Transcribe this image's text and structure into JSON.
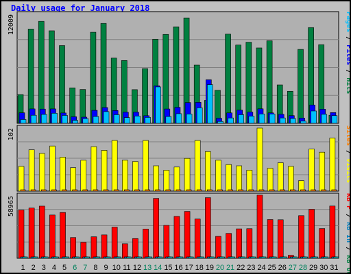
{
  "chart_data": [
    {
      "type": "bar",
      "title": "Daily usage for January 2018",
      "panel": "top",
      "ymax_label": "12009",
      "categories": [
        "1",
        "2",
        "3",
        "4",
        "5",
        "6",
        "7",
        "8",
        "9",
        "10",
        "11",
        "12",
        "13",
        "14",
        "15",
        "16",
        "17",
        "18",
        "19",
        "20",
        "21",
        "22",
        "23",
        "24",
        "25",
        "26",
        "27",
        "28",
        "29",
        "30",
        "31"
      ],
      "weekend_days": [
        "6",
        "7",
        "13",
        "14",
        "20",
        "21",
        "27",
        "28"
      ],
      "series": [
        {
          "name": "Hits",
          "color": "#008040",
          "values": [
            3170,
            10390,
            11240,
            10200,
            8570,
            3910,
            3730,
            10040,
            11010,
            7190,
            6920,
            3710,
            6030,
            9270,
            9800,
            10640,
            11620,
            6420,
            2530,
            3640,
            9830,
            8630,
            8940,
            8310,
            9100,
            4230,
            3530,
            8150,
            10550,
            8670,
            890
          ]
        },
        {
          "name": "Files",
          "color": "#0000ff",
          "values": [
            1160,
            1590,
            1570,
            1590,
            1140,
            720,
            680,
            1430,
            1740,
            1410,
            1220,
            1220,
            840,
            4140,
            1580,
            1760,
            2290,
            2310,
            4800,
            560,
            1150,
            1450,
            1230,
            1600,
            1150,
            990,
            850,
            580,
            2020,
            1560,
            1180
          ]
        },
        {
          "name": "Pages",
          "color": "#00c0ff",
          "values": [
            420,
            890,
            980,
            1110,
            870,
            330,
            520,
            750,
            1290,
            950,
            630,
            800,
            650,
            4010,
            750,
            1060,
            1020,
            1710,
            4260,
            210,
            590,
            950,
            790,
            1030,
            1020,
            590,
            530,
            240,
            1360,
            990,
            850
          ]
        }
      ],
      "ylim": [
        0,
        12009
      ]
    },
    {
      "type": "bar",
      "panel": "middle",
      "ymax_label": "102",
      "categories": [
        "1",
        "2",
        "3",
        "4",
        "5",
        "6",
        "7",
        "8",
        "9",
        "10",
        "11",
        "12",
        "13",
        "14",
        "15",
        "16",
        "17",
        "18",
        "19",
        "20",
        "21",
        "22",
        "23",
        "24",
        "25",
        "26",
        "27",
        "28",
        "29",
        "30",
        "31"
      ],
      "series": [
        {
          "name": "Visits",
          "color": "#ffff00",
          "values": [
            40,
            67,
            61,
            73,
            55,
            38,
            50,
            72,
            66,
            82,
            50,
            48,
            82,
            41,
            34,
            39,
            53,
            82,
            64,
            50,
            43,
            41,
            34,
            102,
            37,
            46,
            40,
            17,
            68,
            63,
            86
          ]
        },
        {
          "name": "Sites",
          "color": "#ff8000",
          "values": [
            2,
            2,
            2,
            2,
            2,
            2,
            2,
            2,
            2,
            2,
            2,
            2,
            2,
            2,
            2,
            2,
            2,
            2,
            2,
            2,
            2,
            2,
            2,
            2,
            2,
            2,
            2,
            2,
            2,
            2,
            2
          ]
        }
      ],
      "ylim": [
        0,
        102
      ]
    },
    {
      "type": "bar",
      "panel": "bottom",
      "ymax_label": "58965",
      "categories": [
        "1",
        "2",
        "3",
        "4",
        "5",
        "6",
        "7",
        "8",
        "9",
        "10",
        "11",
        "12",
        "13",
        "14",
        "15",
        "16",
        "17",
        "18",
        "19",
        "20",
        "21",
        "22",
        "23",
        "24",
        "25",
        "26",
        "27",
        "28",
        "29",
        "30",
        "31"
      ],
      "series": [
        {
          "name": "KB F",
          "color": "#ff0000",
          "values": [
            45600,
            47500,
            49300,
            40900,
            43300,
            19600,
            15100,
            20300,
            22100,
            29400,
            13700,
            18600,
            27600,
            56600,
            31100,
            39600,
            44300,
            37100,
            57300,
            20700,
            23500,
            27800,
            28000,
            59700,
            36600,
            36400,
            2800,
            40300,
            46300,
            28100,
            49400
          ]
        },
        {
          "name": "KB In",
          "color": "#0080c0",
          "values": [
            0,
            0,
            0,
            0,
            0,
            0,
            0,
            0,
            0,
            0,
            0,
            0,
            0,
            0,
            0,
            0,
            0,
            0,
            0,
            0,
            0,
            0,
            0,
            0,
            0,
            0,
            0,
            0,
            0,
            0,
            0
          ]
        },
        {
          "name": "KB Out",
          "color": "#00c0c0",
          "values": [
            0,
            0,
            0,
            0,
            0,
            0,
            0,
            0,
            0,
            0,
            0,
            0,
            0,
            0,
            0,
            0,
            0,
            0,
            0,
            0,
            0,
            0,
            0,
            0,
            0,
            0,
            0,
            0,
            0,
            0,
            0
          ]
        }
      ],
      "ylim": [
        0,
        58965
      ]
    }
  ],
  "side_labels": {
    "top": [
      {
        "text": "Pages",
        "color": "#00c0ff"
      },
      {
        "text": " / ",
        "color": "#000000"
      },
      {
        "text": "Files",
        "color": "#0000ff"
      },
      {
        "text": " / ",
        "color": "#000000"
      },
      {
        "text": "Hits",
        "color": "#008040"
      }
    ],
    "middle": [
      {
        "text": "Sites",
        "color": "#ff8000"
      },
      {
        "text": " / ",
        "color": "#000000"
      },
      {
        "text": "Visits",
        "color": "#ffff00"
      }
    ],
    "bottom": [
      {
        "text": "KB F",
        "color": "#ff0000"
      },
      {
        "text": " / ",
        "color": "#000000"
      },
      {
        "text": "KB In",
        "color": "#0080c0"
      },
      {
        "text": " / ",
        "color": "#000000"
      },
      {
        "text": "KB Out",
        "color": "#008040"
      }
    ]
  },
  "colors": {
    "background": "#c0c0c0",
    "plot_background": "#b0b0b0",
    "weekday_label": "#000000",
    "weekend_label": "#00805c",
    "title": "#0000ff"
  }
}
